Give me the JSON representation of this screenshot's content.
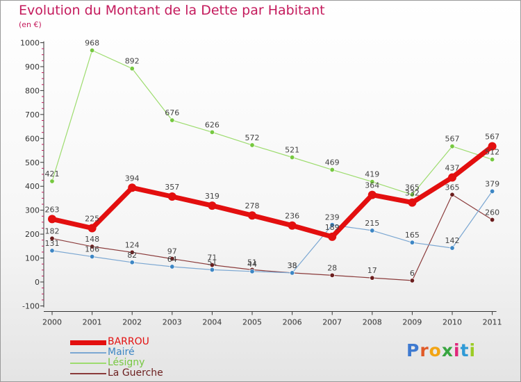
{
  "title": "Evolution du Montant de la Dette par Habitant",
  "subtitle": "(en €)",
  "logo": "Proxiti",
  "colors": {
    "title": "#c41a5c",
    "background": "#ffffff",
    "axis": "#333333",
    "tick_text": "#333333",
    "value_text": "#444444"
  },
  "chart_data": {
    "type": "line",
    "title": "Evolution du Montant de la Dette par Habitant",
    "subtitle": "(en €)",
    "xlabel": "",
    "ylabel": "",
    "x": [
      "2000",
      "2001",
      "2002",
      "2003",
      "2004",
      "2005",
      "2006",
      "2007",
      "2008",
      "2009",
      "2010",
      "2011"
    ],
    "ylim": [
      -100,
      1000
    ],
    "yticks": [
      -100,
      0,
      100,
      200,
      300,
      400,
      500,
      600,
      700,
      800,
      900,
      1000
    ],
    "grid": false,
    "legend": "bottom-left",
    "series": [
      {
        "name": "BARROU",
        "color": "#e30f0f",
        "dot": "#e30f0f",
        "width": 7,
        "radius": 6,
        "values": [
          263,
          225,
          394,
          357,
          319,
          278,
          236,
          189,
          364,
          332,
          437,
          567
        ],
        "labels": [
          "263",
          "225",
          "394",
          "357",
          "319",
          "278",
          "236",
          "189",
          "364",
          "332",
          "437",
          "567"
        ]
      },
      {
        "name": "Mairé",
        "color": "#7ba7d2",
        "dot": "#3d86c4",
        "width": 1.2,
        "radius": 3.2,
        "values": [
          131,
          106,
          82,
          64,
          51,
          44,
          38,
          239,
          215,
          165,
          142,
          379
        ],
        "labels": [
          "131",
          "106",
          "82",
          "64",
          "51",
          "44",
          "38",
          "239",
          "215",
          "165",
          "142",
          "379"
        ]
      },
      {
        "name": "Lésigny",
        "color": "#9ddc6e",
        "dot": "#76c840",
        "width": 1.2,
        "radius": 3.2,
        "values": [
          421,
          968,
          892,
          676,
          626,
          572,
          521,
          469,
          419,
          365,
          567,
          512
        ],
        "labels": [
          "421",
          "968",
          "892",
          "676",
          "626",
          "572",
          "521",
          "469",
          "419",
          "365",
          "567",
          "512"
        ]
      },
      {
        "name": "La Guerche",
        "color": "#8a3a3a",
        "dot": "#6b1e1e",
        "width": 1.2,
        "radius": 3.2,
        "values": [
          182,
          148,
          124,
          97,
          71,
          51,
          38,
          28,
          17,
          6,
          365,
          260
        ],
        "labels": [
          "182",
          "148",
          "124",
          "97",
          "71",
          "51",
          "38",
          "28",
          "17",
          "6",
          "365",
          "260"
        ]
      }
    ]
  }
}
